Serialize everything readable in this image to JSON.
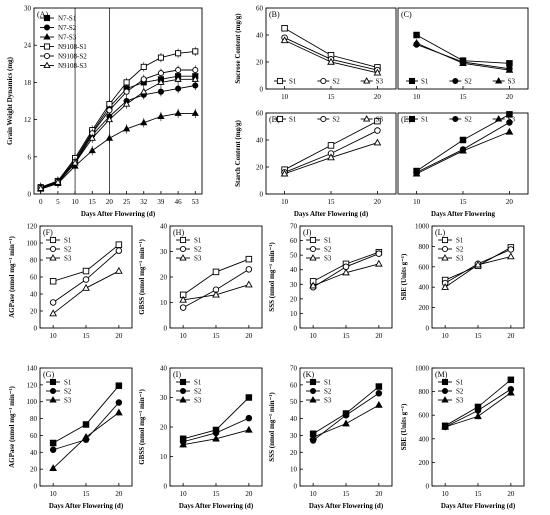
{
  "figure": {
    "days_label": "Days After Flowering (d)",
    "days_label_nounit": "Days After Flowering"
  },
  "chart_data": [
    {
      "id": "A",
      "panel_label": "(A)",
      "type": "line",
      "ylabel": "Grain Weight Dynamics (mg)",
      "xlabel": "Days After Flowering (d)",
      "x": [
        0,
        5,
        10,
        15,
        20,
        25,
        32,
        39,
        46,
        53
      ],
      "xticks": [
        0,
        5,
        10,
        15,
        20,
        25,
        32,
        39,
        46,
        53
      ],
      "ylim": [
        0,
        30
      ],
      "yticks": [
        0,
        6,
        12,
        18,
        24,
        30
      ],
      "vlines": [
        10,
        20
      ],
      "legend": "top-left",
      "series": [
        {
          "name": "N7-S1",
          "marker": "square",
          "fill": "filled",
          "values": [
            1.0,
            2.0,
            5.5,
            10.0,
            14.0,
            17.0,
            18.0,
            18.5,
            19.0,
            19.0
          ]
        },
        {
          "name": "N7-S2",
          "marker": "circle",
          "fill": "filled",
          "values": [
            0.9,
            1.8,
            5.0,
            9.5,
            12.5,
            15.0,
            16.0,
            16.5,
            17.0,
            17.5
          ]
        },
        {
          "name": "N7-S3",
          "marker": "triangle",
          "fill": "filled",
          "values": [
            0.8,
            1.7,
            4.5,
            7.0,
            9.0,
            10.5,
            11.5,
            12.5,
            13.0,
            13.0
          ]
        },
        {
          "name": "N9108-S1",
          "marker": "square",
          "fill": "open",
          "values": [
            1.1,
            2.1,
            5.8,
            10.3,
            14.5,
            18.0,
            20.5,
            22.0,
            22.7,
            23.0
          ]
        },
        {
          "name": "N9108-S2",
          "marker": "circle",
          "fill": "open",
          "values": [
            1.0,
            2.0,
            5.2,
            9.8,
            13.5,
            16.5,
            18.5,
            19.5,
            20.0,
            20.0
          ]
        },
        {
          "name": "N9108-S3",
          "marker": "triangle",
          "fill": "open",
          "values": [
            0.9,
            1.9,
            5.0,
            9.0,
            12.0,
            14.5,
            16.5,
            18.0,
            18.5,
            18.5
          ]
        }
      ]
    },
    {
      "id": "B",
      "panel_label": "(B)",
      "type": "line",
      "ylabel": "Sucrose Content (mg/g)",
      "xlabel": "",
      "x": [
        10,
        15,
        20
      ],
      "xticks": [
        10,
        15,
        20
      ],
      "ylim": [
        0,
        60
      ],
      "yticks": [
        0,
        20,
        40,
        60
      ],
      "legend": "bottom",
      "series": [
        {
          "name": "S1",
          "marker": "square",
          "fill": "open",
          "values": [
            45,
            25,
            16
          ]
        },
        {
          "name": "S2",
          "marker": "circle",
          "fill": "open",
          "values": [
            38,
            22,
            14
          ]
        },
        {
          "name": "S3",
          "marker": "triangle",
          "fill": "open",
          "values": [
            36,
            20,
            12
          ]
        }
      ]
    },
    {
      "id": "C",
      "panel_label": "(C)",
      "type": "line",
      "ylabel": "",
      "xlabel": "",
      "x": [
        10,
        15,
        20
      ],
      "xticks": [
        10,
        15,
        20
      ],
      "ylim": [
        0,
        60
      ],
      "yticks": [],
      "legend": "bottom",
      "series": [
        {
          "name": "S1",
          "marker": "square",
          "fill": "filled",
          "values": [
            40,
            21,
            19
          ]
        },
        {
          "name": "S2",
          "marker": "circle",
          "fill": "filled",
          "values": [
            33,
            20,
            15
          ]
        },
        {
          "name": "S3",
          "marker": "triangle",
          "fill": "filled",
          "values": [
            34,
            19,
            14
          ]
        }
      ]
    },
    {
      "id": "D",
      "panel_label": "(D)",
      "type": "line",
      "ylabel": "Starch Content (mg/g)",
      "xlabel": "Days After Flowering (d)",
      "x": [
        10,
        15,
        20
      ],
      "xticks": [
        10,
        15,
        20
      ],
      "ylim": [
        0,
        60
      ],
      "yticks": [
        0,
        20,
        40,
        60
      ],
      "legend": "top",
      "series": [
        {
          "name": "S1",
          "marker": "square",
          "fill": "open",
          "values": [
            18,
            36,
            54
          ]
        },
        {
          "name": "S2",
          "marker": "circle",
          "fill": "open",
          "values": [
            16,
            30,
            47
          ]
        },
        {
          "name": "S3",
          "marker": "triangle",
          "fill": "open",
          "values": [
            15,
            27,
            38
          ]
        }
      ]
    },
    {
      "id": "E",
      "panel_label": "(E)",
      "type": "line",
      "ylabel": "",
      "xlabel": "Days After Flowering",
      "x": [
        10,
        15,
        20
      ],
      "xticks": [
        10,
        15,
        20
      ],
      "ylim": [
        0,
        60
      ],
      "yticks": [],
      "legend": "top",
      "series": [
        {
          "name": "S1",
          "marker": "square",
          "fill": "filled",
          "values": [
            17,
            40,
            59
          ]
        },
        {
          "name": "S2",
          "marker": "circle",
          "fill": "filled",
          "values": [
            16,
            33,
            53
          ]
        },
        {
          "name": "S3",
          "marker": "triangle",
          "fill": "filled",
          "values": [
            15,
            32,
            46
          ]
        }
      ]
    },
    {
      "id": "F",
      "panel_label": "(F)",
      "type": "line",
      "ylabel": "AGPase (nmol mg⁻¹ min⁻¹)",
      "xlabel": "",
      "x": [
        10,
        15,
        20
      ],
      "xticks": [
        10,
        15,
        20
      ],
      "ylim": [
        0,
        120
      ],
      "yticks": [
        0,
        20,
        40,
        60,
        80,
        100,
        120
      ],
      "legend": "top-left",
      "series": [
        {
          "name": "S1",
          "marker": "square",
          "fill": "open",
          "values": [
            55,
            67,
            98
          ]
        },
        {
          "name": "S2",
          "marker": "circle",
          "fill": "open",
          "values": [
            30,
            57,
            91
          ]
        },
        {
          "name": "S3",
          "marker": "triangle",
          "fill": "open",
          "values": [
            17,
            47,
            67
          ]
        }
      ]
    },
    {
      "id": "H",
      "panel_label": "(H)",
      "type": "line",
      "ylabel": "GBSS (nmol mg⁻¹ min⁻¹)",
      "xlabel": "",
      "x": [
        10,
        15,
        20
      ],
      "xticks": [
        10,
        15,
        20
      ],
      "ylim": [
        0,
        40
      ],
      "yticks": [
        0,
        10,
        20,
        30,
        40
      ],
      "legend": "top-left",
      "series": [
        {
          "name": "S1",
          "marker": "square",
          "fill": "open",
          "values": [
            13,
            22,
            27
          ]
        },
        {
          "name": "S2",
          "marker": "circle",
          "fill": "open",
          "values": [
            8,
            15,
            23
          ]
        },
        {
          "name": "S3",
          "marker": "triangle",
          "fill": "open",
          "values": [
            11,
            13,
            17
          ]
        }
      ]
    },
    {
      "id": "J",
      "panel_label": "(J)",
      "type": "line",
      "ylabel": "SSS (nmol mg⁻¹ min⁻¹)",
      "xlabel": "",
      "x": [
        10,
        15,
        20
      ],
      "xticks": [
        10,
        15,
        20
      ],
      "ylim": [
        0,
        70
      ],
      "yticks": [
        0,
        10,
        20,
        30,
        40,
        50,
        60,
        70
      ],
      "legend": "top-left",
      "series": [
        {
          "name": "S1",
          "marker": "square",
          "fill": "open",
          "values": [
            32,
            44,
            52
          ]
        },
        {
          "name": "S2",
          "marker": "circle",
          "fill": "open",
          "values": [
            28,
            42,
            51
          ]
        },
        {
          "name": "S3",
          "marker": "triangle",
          "fill": "open",
          "values": [
            29,
            38,
            44
          ]
        }
      ]
    },
    {
      "id": "L",
      "panel_label": "(L)",
      "type": "line",
      "ylabel": "SBE (Units g⁻¹)",
      "xlabel": "",
      "x": [
        10,
        15,
        20
      ],
      "xticks": [
        10,
        15,
        20
      ],
      "ylim": [
        0,
        1000
      ],
      "yticks": [
        0,
        200,
        400,
        600,
        800,
        1000
      ],
      "legend": "top-left",
      "series": [
        {
          "name": "S1",
          "marker": "square",
          "fill": "open",
          "values": [
            470,
            610,
            790
          ]
        },
        {
          "name": "S2",
          "marker": "circle",
          "fill": "open",
          "values": [
            440,
            630,
            770
          ]
        },
        {
          "name": "S3",
          "marker": "triangle",
          "fill": "open",
          "values": [
            400,
            620,
            700
          ]
        }
      ]
    },
    {
      "id": "G",
      "panel_label": "(G)",
      "type": "line",
      "ylabel": "AGPase (nmol mg⁻¹ min⁻¹)",
      "xlabel": "Days After Flowering (d)",
      "x": [
        10,
        15,
        20
      ],
      "xticks": [
        10,
        15,
        20
      ],
      "ylim": [
        0,
        140
      ],
      "yticks": [
        0,
        20,
        40,
        60,
        80,
        100,
        120,
        140
      ],
      "legend": "top-left",
      "series": [
        {
          "name": "S1",
          "marker": "square",
          "fill": "filled",
          "values": [
            51,
            73,
            119
          ]
        },
        {
          "name": "S2",
          "marker": "circle",
          "fill": "filled",
          "values": [
            43,
            55,
            99
          ]
        },
        {
          "name": "S3",
          "marker": "triangle",
          "fill": "filled",
          "values": [
            21,
            58,
            87
          ]
        }
      ]
    },
    {
      "id": "I",
      "panel_label": "(I)",
      "type": "line",
      "ylabel": "GBSS (nmol mg⁻¹ min⁻¹)",
      "xlabel": "Days After Flowering (d)",
      "x": [
        10,
        15,
        20
      ],
      "xticks": [
        10,
        15,
        20
      ],
      "ylim": [
        0,
        40
      ],
      "yticks": [
        0,
        10,
        20,
        30,
        40
      ],
      "legend": "top-left",
      "series": [
        {
          "name": "S1",
          "marker": "square",
          "fill": "filled",
          "values": [
            16,
            19,
            30
          ]
        },
        {
          "name": "S2",
          "marker": "circle",
          "fill": "filled",
          "values": [
            15,
            18,
            23
          ]
        },
        {
          "name": "S3",
          "marker": "triangle",
          "fill": "filled",
          "values": [
            14,
            16,
            19
          ]
        }
      ]
    },
    {
      "id": "K",
      "panel_label": "(K)",
      "type": "line",
      "ylabel": "SSS (nmol mg⁻¹ min⁻¹)",
      "xlabel": "Days After Flowering (d)",
      "x": [
        10,
        15,
        20
      ],
      "xticks": [
        10,
        15,
        20
      ],
      "ylim": [
        0,
        70
      ],
      "yticks": [
        0,
        10,
        20,
        30,
        40,
        50,
        60,
        70
      ],
      "legend": "top-left",
      "series": [
        {
          "name": "S1",
          "marker": "square",
          "fill": "filled",
          "values": [
            31,
            43,
            59
          ]
        },
        {
          "name": "S2",
          "marker": "circle",
          "fill": "filled",
          "values": [
            27,
            42,
            55
          ]
        },
        {
          "name": "S3",
          "marker": "triangle",
          "fill": "filled",
          "values": [
            29,
            37,
            48
          ]
        }
      ]
    },
    {
      "id": "M",
      "panel_label": "(M)",
      "type": "line",
      "ylabel": "SBE (Units g⁻¹)",
      "xlabel": "Days After Flowering (d)",
      "x": [
        10,
        15,
        20
      ],
      "xticks": [
        10,
        15,
        20
      ],
      "ylim": [
        0,
        1000
      ],
      "yticks": [
        0,
        200,
        400,
        600,
        800,
        1000
      ],
      "legend": "top-left",
      "series": [
        {
          "name": "S1",
          "marker": "square",
          "fill": "filled",
          "values": [
            510,
            670,
            900
          ]
        },
        {
          "name": "S2",
          "marker": "circle",
          "fill": "filled",
          "values": [
            500,
            640,
            820
          ]
        },
        {
          "name": "S3",
          "marker": "triangle",
          "fill": "filled",
          "values": [
            500,
            590,
            790
          ]
        }
      ]
    }
  ]
}
